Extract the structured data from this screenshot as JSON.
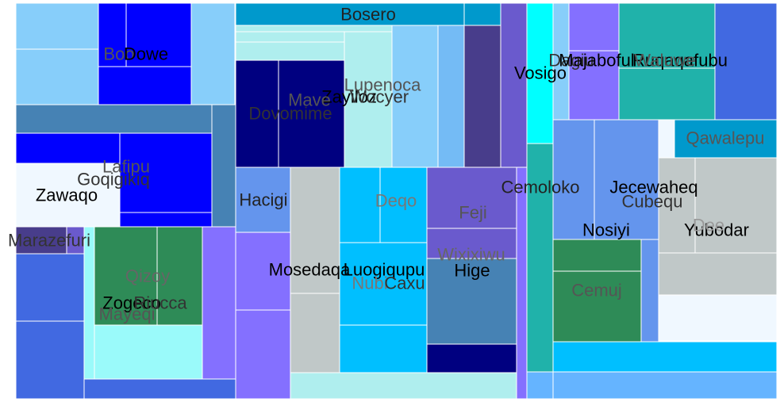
{
  "chart_data": {
    "type": "treemap",
    "tiles": [
      {
        "label": "Bosero",
        "color": "#0099CC",
        "text_color": "#222222"
      },
      {
        "label": "Zawaqo",
        "color": "#F0F8FF",
        "text_color": "#000000"
      },
      {
        "label": "Goqigikiq",
        "color": "#F0F8FF",
        "text_color": "#333333"
      },
      {
        "label": "Lafipu",
        "color": "#0000FF",
        "text_color": "#555555"
      },
      {
        "label": "Boo",
        "color": "#87CEFA",
        "text_color": "#555555"
      },
      {
        "label": "Dowe",
        "color": "#0000FF",
        "text_color": "#000000"
      },
      {
        "label": "Marazefuri",
        "color": "#483D8B",
        "text_color": "#333333"
      },
      {
        "label": "Zogeco",
        "color": "#2E8B57",
        "text_color": "#000000"
      },
      {
        "label": "Riucca",
        "color": "#2E8B57",
        "text_color": "#333333"
      },
      {
        "label": "Qizoy",
        "color": "#2E8B57",
        "text_color": "#666666"
      },
      {
        "label": "Mayeqi",
        "color": "#9AFAFA",
        "text_color": "#555555"
      },
      {
        "label": "Dovomime",
        "color": "#000080",
        "text_color": "#333333"
      },
      {
        "label": "Zayiloz",
        "color": "#000080",
        "text_color": "#000000"
      },
      {
        "label": "Mave",
        "color": "#000080",
        "text_color": "#555555"
      },
      {
        "label": "Lupenoca",
        "color": "#AFEEEE",
        "text_color": "#555555"
      },
      {
        "label": "Wocyer",
        "color": "#AFEEEE",
        "text_color": "#333333"
      },
      {
        "label": "Hacigi",
        "color": "#6495ED",
        "text_color": "#222222"
      },
      {
        "label": "Mosedaqa",
        "color": "#C0C8C8",
        "text_color": "#000000"
      },
      {
        "label": "Luogiqupu",
        "color": "#00BFFF",
        "text_color": "#000000"
      },
      {
        "label": "Nubi",
        "color": "#00BFFF",
        "text_color": "#777777"
      },
      {
        "label": "Caxu",
        "color": "#00BFFF",
        "text_color": "#333333"
      },
      {
        "label": "Deqo",
        "color": "#00BFFF",
        "text_color": "#777777"
      },
      {
        "label": "Feji",
        "color": "#6A5ACD",
        "text_color": "#555555"
      },
      {
        "label": "Wixixiwu",
        "color": "#6A5ACD",
        "text_color": "#666666"
      },
      {
        "label": "Hige",
        "color": "#4682B4",
        "text_color": "#000000"
      },
      {
        "label": "Cemoloko",
        "color": "#20B2AA",
        "text_color": "#222222"
      },
      {
        "label": "Vosigo",
        "color": "#00FFFF",
        "text_color": "#000000"
      },
      {
        "label": "Dagiu",
        "color": "#00FFFF",
        "text_color": "#333333"
      },
      {
        "label": "Majaboful",
        "color": "#8470FF",
        "text_color": "#000000"
      },
      {
        "label": "Ruqaqafubu",
        "color": "#20B2AA",
        "text_color": "#000000"
      },
      {
        "label": "Waluwe",
        "color": "#20B2AA",
        "text_color": "#555555"
      },
      {
        "label": "Qawalepu",
        "color": "#0099CC",
        "text_color": "#555555"
      },
      {
        "label": "Jecewaheq",
        "color": "#6495ED",
        "text_color": "#000000"
      },
      {
        "label": "Cubequ",
        "color": "#6495ED",
        "text_color": "#333333"
      },
      {
        "label": "Nosiyi",
        "color": "#6495ED",
        "text_color": "#000000"
      },
      {
        "label": "Yubodar",
        "color": "#C0C8C8",
        "text_color": "#000000"
      },
      {
        "label": "Dee",
        "color": "#C0C8C8",
        "text_color": "#999999"
      },
      {
        "label": "Cemuj",
        "color": "#2E8B57",
        "text_color": "#555555"
      }
    ]
  }
}
